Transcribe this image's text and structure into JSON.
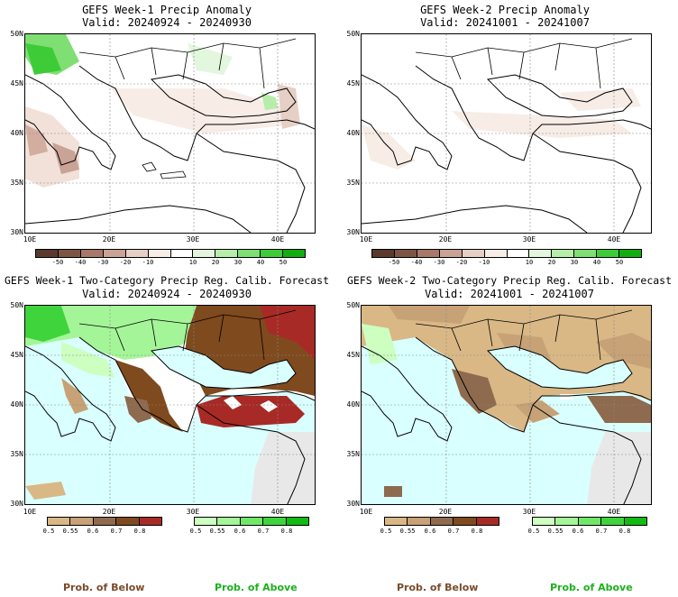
{
  "panels": {
    "p1": {
      "title_line1": "GEFS Week-1 Precip Anomaly",
      "title_line2": "Valid: 20240924 - 20240930"
    },
    "p2": {
      "title_line1": "GEFS Week-2 Precip Anomaly",
      "title_line2": "Valid: 20241001 - 20241007"
    },
    "p3": {
      "title_line1": "GEFS Week-1 Two-Category Precip Reg. Calib. Forecast",
      "title_line2": "Valid: 20240924 - 20240930"
    },
    "p4": {
      "title_line1": "GEFS Week-2 Two-Category Precip Reg. Calib. Forecast",
      "title_line2": "Valid: 20241001 - 20241007"
    }
  },
  "axes": {
    "lat_labels": [
      "50N",
      "45N",
      "40N",
      "35N",
      "30N"
    ],
    "lon_labels": [
      "10E",
      "20E",
      "30E",
      "40E"
    ]
  },
  "anomaly_colorbar": {
    "labels": [
      "-50",
      "-40",
      "-30",
      "-20",
      "-10",
      "10",
      "20",
      "30",
      "40",
      "50"
    ],
    "colors": [
      "#5a3a2e",
      "#7d5545",
      "#a8786a",
      "#c9a396",
      "#e6cfc5",
      "#f7ece6",
      "#ffffff",
      "#e2f7dd",
      "#b6edab",
      "#7fdf73",
      "#3ecb38",
      "#12ad12"
    ]
  },
  "prob_colorbars": {
    "below": {
      "labels": [
        "0.5",
        "0.55",
        "0.6",
        "0.7",
        "0.8"
      ],
      "colors": [
        "#d9b886",
        "#c7a276",
        "#8e6a4f",
        "#7f4a1e",
        "#a82a26"
      ]
    },
    "above": {
      "labels": [
        "0.5",
        "0.55",
        "0.6",
        "0.7",
        "0.8"
      ],
      "colors": [
        "#ccffc0",
        "#a4f598",
        "#6fe867",
        "#3fd43c",
        "#12bb12"
      ]
    }
  },
  "footer": {
    "below_label": "Prob. of Below",
    "above_label": "Prob. of Above",
    "below_color": "#7a4a2a",
    "above_color": "#1db01d"
  }
}
